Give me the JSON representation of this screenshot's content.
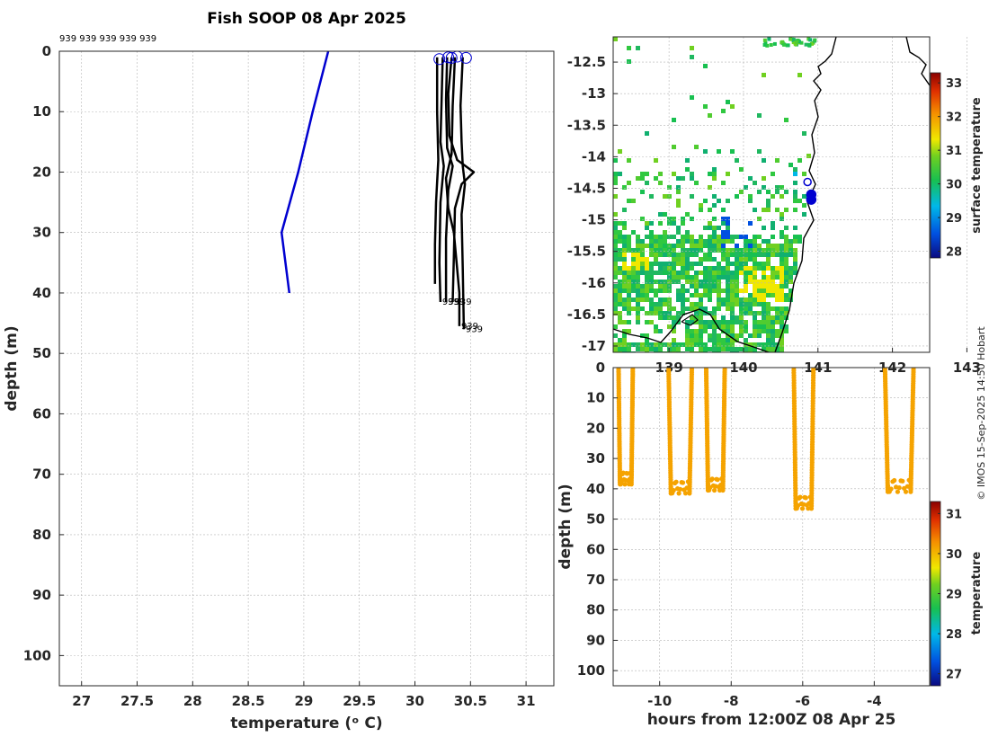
{
  "colors": {
    "profile_black": "#000000",
    "profile_blue": "#0000d0",
    "track_orange": "#f5a300",
    "coast": "#000000"
  },
  "signature": "© IMOS 15-Sep-2025 14:50 Hobart",
  "chart_data": [
    {
      "type": "line",
      "title": "Fish SOOP 08 Apr 2025",
      "xlabel": "temperature (ᵒ C)",
      "ylabel": "depth (m)",
      "xlim": [
        26.8,
        31.25
      ],
      "ylim": [
        105,
        0
      ],
      "x_ticks": [
        "27",
        "27.5",
        "28",
        "28.5",
        "29",
        "29.5",
        "30",
        "30.5",
        "31"
      ],
      "y_ticks": [
        "0",
        "10",
        "20",
        "30",
        "40",
        "50",
        "60",
        "70",
        "80",
        "90",
        "100"
      ],
      "top_labels": "939 939 939 939 939",
      "profile_labels": [
        "939",
        "939",
        "939",
        "939",
        "939"
      ],
      "grid": true,
      "series": [
        {
          "color": "blue",
          "points": [
            [
              29.22,
              0
            ],
            [
              29.08,
              10
            ],
            [
              28.95,
              20
            ],
            [
              28.8,
              30
            ],
            [
              28.87,
              40
            ]
          ]
        },
        {
          "color": "black",
          "points": [
            [
              30.2,
              1
            ],
            [
              30.2,
              10
            ],
            [
              30.21,
              18
            ],
            [
              30.19,
              25
            ],
            [
              30.18,
              32
            ],
            [
              30.18,
              38.5
            ]
          ]
        },
        {
          "color": "black",
          "points": [
            [
              30.25,
              1
            ],
            [
              30.24,
              8
            ],
            [
              30.23,
              15
            ],
            [
              30.26,
              19
            ],
            [
              30.23,
              25
            ],
            [
              30.22,
              35
            ],
            [
              30.23,
              41.5
            ]
          ]
        },
        {
          "color": "black",
          "points": [
            [
              30.29,
              1
            ],
            [
              30.28,
              8
            ],
            [
              30.29,
              16
            ],
            [
              30.34,
              19
            ],
            [
              30.3,
              23
            ],
            [
              30.28,
              31
            ],
            [
              30.28,
              41.5
            ]
          ]
        },
        {
          "color": "black",
          "points": [
            [
              30.33,
              1
            ],
            [
              30.3,
              7
            ],
            [
              30.31,
              14
            ],
            [
              30.38,
              18
            ],
            [
              30.53,
              20
            ],
            [
              30.42,
              22
            ],
            [
              30.36,
              26
            ],
            [
              30.35,
              34
            ],
            [
              30.34,
              41.5
            ]
          ]
        },
        {
          "color": "black",
          "points": [
            [
              30.36,
              1
            ],
            [
              30.34,
              9
            ],
            [
              30.33,
              17
            ],
            [
              30.28,
              21
            ],
            [
              30.3,
              26
            ],
            [
              30.35,
              30
            ],
            [
              30.4,
              40
            ],
            [
              30.4,
              45.5
            ]
          ]
        },
        {
          "color": "black",
          "points": [
            [
              30.43,
              1
            ],
            [
              30.41,
              9
            ],
            [
              30.42,
              15
            ],
            [
              30.43,
              19
            ],
            [
              30.45,
              22
            ],
            [
              30.42,
              27
            ],
            [
              30.43,
              36
            ],
            [
              30.44,
              46
            ]
          ]
        }
      ],
      "markers": [
        [
          30.22,
          1.3
        ],
        [
          30.3,
          1.0
        ],
        [
          30.33,
          1.1
        ],
        [
          30.38,
          0.9
        ],
        [
          30.46,
          1.1
        ]
      ]
    },
    {
      "type": "heatmap",
      "xlim": [
        138.25,
        142.5
      ],
      "ylim": [
        -17.1,
        -12.1
      ],
      "x_ticks": [
        "139",
        "140",
        "141",
        "142",
        "143"
      ],
      "y_ticks": [
        "-12.5",
        "-13",
        "-13.5",
        "-14",
        "-14.5",
        "-15",
        "-15.5",
        "-16",
        "-16.5",
        "-17"
      ],
      "colorbar_label": "surface temperature",
      "colorbar_range": [
        27.8,
        33.3
      ],
      "colorbar_ticks": [
        "28",
        "29",
        "30",
        "31",
        "32",
        "33"
      ],
      "grid": true,
      "tracks": [
        [
          140.86,
          -14.4
        ],
        [
          140.91,
          -14.6
        ],
        [
          140.91,
          -14.68
        ]
      ]
    },
    {
      "type": "scatter",
      "xlabel": "hours from 12:00Z 08 Apr 25",
      "ylabel": "depth (m)",
      "xlim": [
        -11.3,
        -2.45
      ],
      "ylim": [
        105,
        0
      ],
      "x_ticks": [
        "-10",
        "-8",
        "-6",
        "-4"
      ],
      "y_ticks": [
        "0",
        "10",
        "20",
        "30",
        "40",
        "50",
        "60",
        "70",
        "80",
        "90",
        "100"
      ],
      "colorbar_label": "temperature",
      "colorbar_range": [
        26.7,
        31.3
      ],
      "colorbar_ticks": [
        "27",
        "28",
        "29",
        "30",
        "31"
      ],
      "grid": true,
      "casts": [
        {
          "t0": -11.15,
          "t1": -10.75,
          "maxdepth": 38.5
        },
        {
          "t0": -9.75,
          "t1": -9.1,
          "maxdepth": 41.5
        },
        {
          "t0": -8.7,
          "t1": -8.18,
          "maxdepth": 40.5
        },
        {
          "t0": -6.25,
          "t1": -5.7,
          "maxdepth": 46.5
        },
        {
          "t0": -3.7,
          "t1": -2.9,
          "maxdepth": 41.0
        }
      ]
    }
  ]
}
